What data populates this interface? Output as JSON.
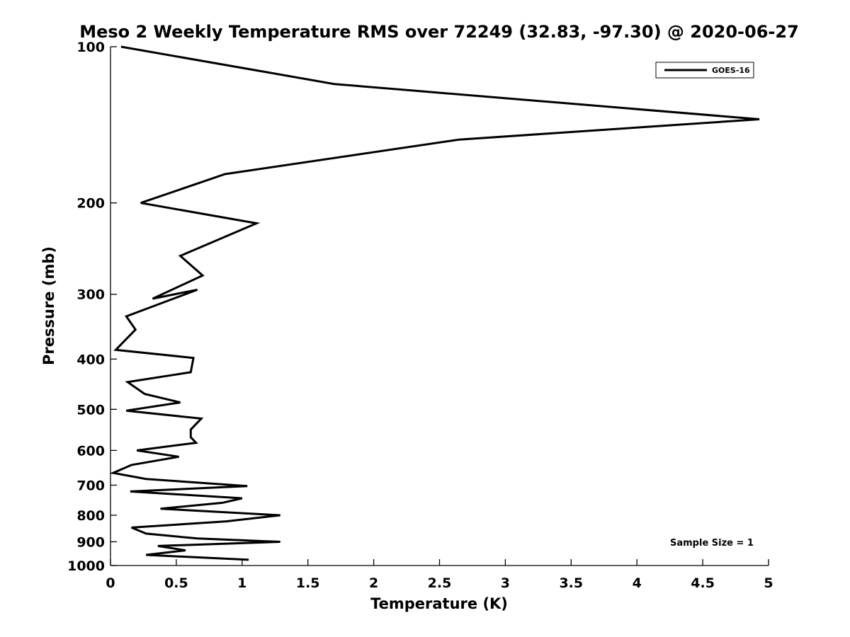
{
  "chart_data": {
    "type": "line",
    "title": "Meso 2 Weekly Temperature RMS over 72249 (32.83, -97.30) @ 2020-06-27",
    "xlabel": "Temperature (K)",
    "ylabel": "Pressure (mb)",
    "xlim": [
      0,
      5
    ],
    "ylim": [
      1000,
      100
    ],
    "y_scale": "log",
    "y_reversed": true,
    "grid": false,
    "legend_position": "top-right",
    "x_ticks": [
      "0",
      "0.5",
      "1",
      "1.5",
      "2",
      "2.5",
      "3",
      "3.5",
      "4",
      "4.5",
      "5"
    ],
    "y_ticks": [
      "100",
      "200",
      "300",
      "400",
      "500",
      "600",
      "700",
      "800",
      "900",
      "1000"
    ],
    "annotation": "Sample Size = 1",
    "series": [
      {
        "name": "GOES-16",
        "color": "#000000",
        "x": [
          0.08,
          1.7,
          4.93,
          2.65,
          0.87,
          0.23,
          1.11,
          0.53,
          0.7,
          0.32,
          0.66,
          0.12,
          0.19,
          0.04,
          0.63,
          0.61,
          0.13,
          0.26,
          0.53,
          0.12,
          0.69,
          0.61,
          0.61,
          0.65,
          0.2,
          0.52,
          0.16,
          0.02,
          0.27,
          1.04,
          0.15,
          1.0,
          0.85,
          0.38,
          1.29,
          0.88,
          0.16,
          0.27,
          0.66,
          1.29,
          0.36,
          0.57,
          0.27,
          1.05
        ],
        "y": [
          100,
          118,
          138,
          151,
          176,
          200,
          219,
          253,
          276,
          306,
          294,
          331,
          351,
          384,
          398,
          424,
          443,
          467,
          485,
          503,
          521,
          547,
          566,
          580,
          600,
          617,
          640,
          663,
          681,
          703,
          720,
          742,
          757,
          777,
          800,
          822,
          845,
          868,
          887,
          900,
          917,
          935,
          954,
          975
        ]
      }
    ]
  }
}
